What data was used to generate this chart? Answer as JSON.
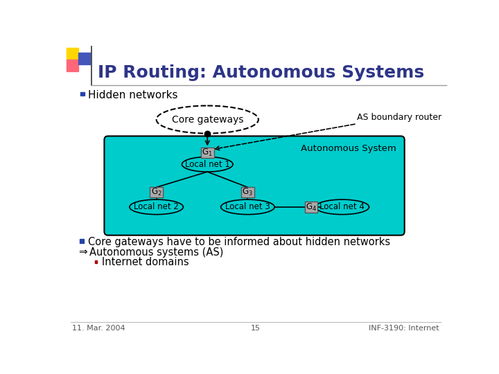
{
  "title": "IP Routing: Autonomous Systems",
  "title_color": "#2E3587",
  "title_fontsize": 18,
  "bg_color": "#FFFFFF",
  "bullet1": "Hidden networks",
  "bullet2": "Core gateways have to be informed about hidden networks",
  "bullet3": "Autonomous systems (AS)",
  "bullet4": "Internet domains",
  "footer_left": "11. Mar. 2004",
  "footer_center": "15",
  "footer_right": "INF-3190: Internet",
  "as_box_color": "#00CCCC",
  "bullet_color": "#2244AA",
  "logo_yellow": "#FFD700",
  "logo_pink": "#FF6677",
  "logo_blue": "#4455BB"
}
